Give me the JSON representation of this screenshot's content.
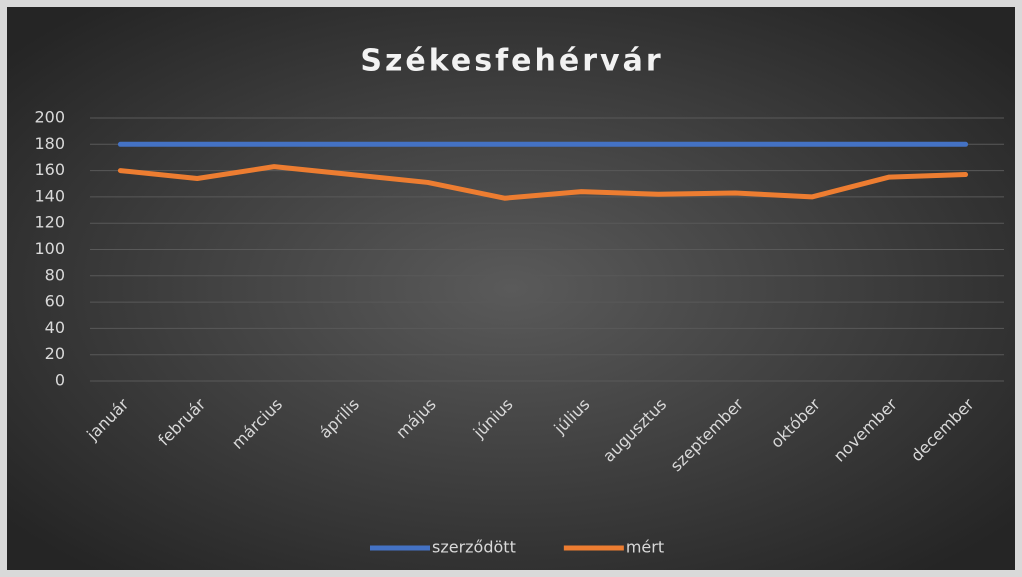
{
  "chart_data": {
    "type": "line",
    "title": "Székesfehérvár",
    "categories": [
      "január",
      "február",
      "március",
      "április",
      "május",
      "június",
      "július",
      "augusztus",
      "szeptember",
      "október",
      "november",
      "december"
    ],
    "series": [
      {
        "name": "szerződött",
        "color": "#4472c4",
        "values": [
          180,
          180,
          180,
          180,
          180,
          180,
          180,
          180,
          180,
          180,
          180,
          180
        ]
      },
      {
        "name": "mért",
        "color": "#ed7d31",
        "values": [
          160,
          154,
          163,
          157,
          151,
          139,
          144,
          142,
          143,
          140,
          155,
          157
        ]
      }
    ],
    "ylim": [
      0,
      200
    ],
    "yticks": [
      0,
      20,
      40,
      60,
      80,
      100,
      120,
      140,
      160,
      180,
      200
    ],
    "grid": true,
    "legend": "bottom"
  }
}
